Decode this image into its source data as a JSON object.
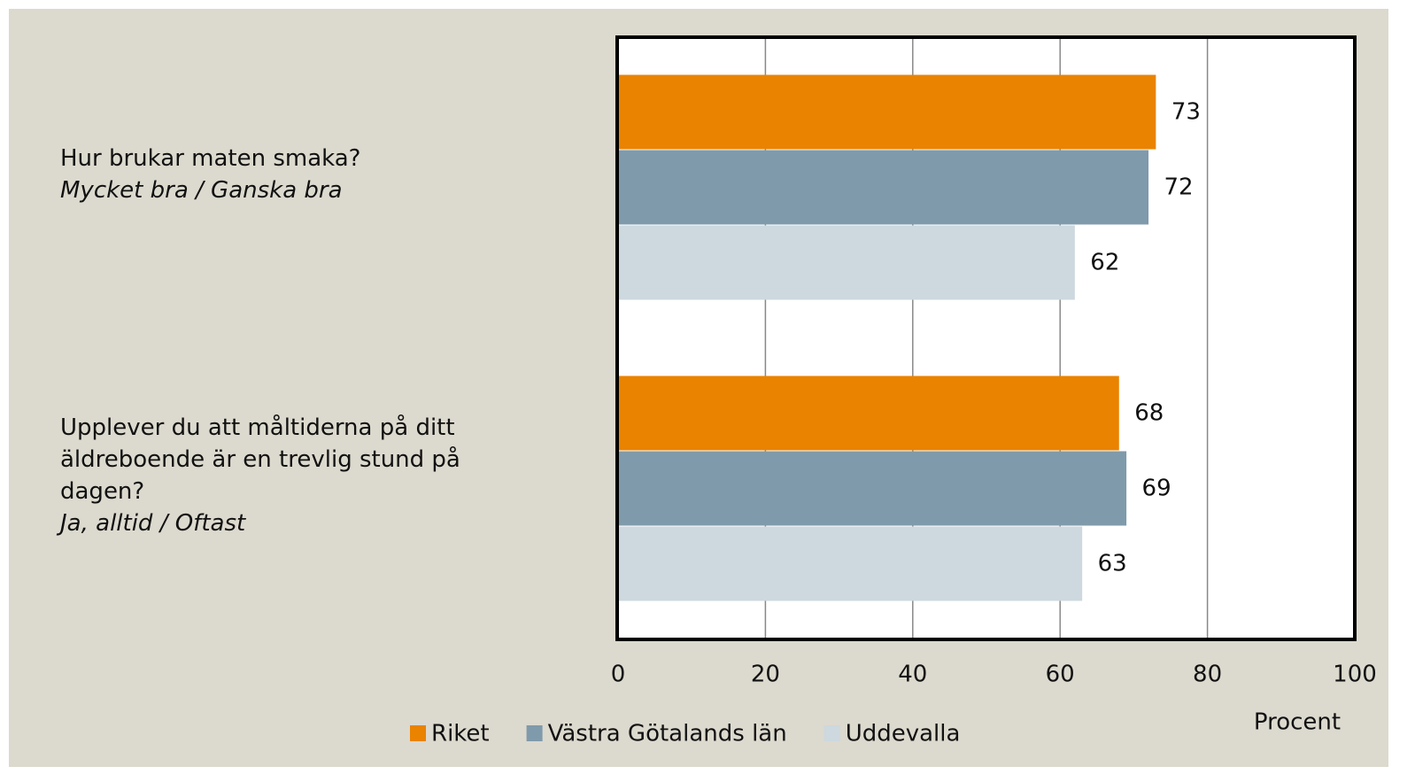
{
  "chart_data": {
    "type": "hbar",
    "categories": [
      "Hur brukar maten smaka?",
      "Upplever du att måltiderna på ditt äldreboende är en trevlig stund på dagen?"
    ],
    "category_subtitles": [
      "Mycket bra / Ganska bra",
      "Ja, alltid / Oftast"
    ],
    "series": [
      {
        "name": "Riket",
        "color": "#e98300",
        "values": [
          73,
          68
        ]
      },
      {
        "name": "Västra Götalands län",
        "color": "#7f9aab",
        "values": [
          72,
          69
        ]
      },
      {
        "name": "Uddevalla",
        "color": "#cdd8df",
        "values": [
          62,
          63
        ]
      }
    ],
    "xlim": [
      0,
      100
    ],
    "xticks": [
      0,
      20,
      40,
      60,
      80,
      100
    ],
    "x_label": "Procent",
    "grid": true,
    "legend": "bottom"
  }
}
